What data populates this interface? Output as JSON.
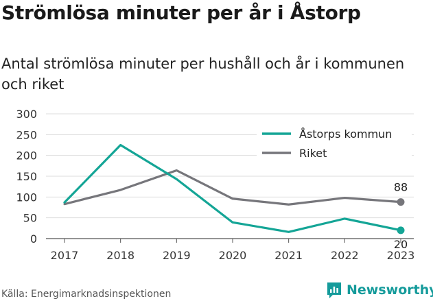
{
  "title": "Strömlösa minuter per år i Åstorp",
  "subtitle": "Antal strömlösa minuter per hushåll och år i kommunen och riket",
  "source": "Källa: Energimarknadsinspektionen",
  "brand": {
    "name": "Newsworthy",
    "icon": "newsworthy-logo-icon",
    "color": "#159b9b"
  },
  "chart_data": {
    "type": "line",
    "x": [
      "2017",
      "2018",
      "2019",
      "2020",
      "2021",
      "2022",
      "2023"
    ],
    "ylim": [
      0,
      300
    ],
    "yticks": [
      "0",
      "50",
      "100",
      "150",
      "200",
      "250",
      "300"
    ],
    "grid": true,
    "legend": "top-right",
    "series": [
      {
        "name": "Åstorps kommun",
        "color": "#14a596",
        "values": [
          87,
          225,
          143,
          39,
          16,
          48,
          20
        ],
        "end_label": "20"
      },
      {
        "name": "Riket",
        "color": "#76767b",
        "values": [
          83,
          117,
          164,
          96,
          82,
          98,
          88
        ],
        "end_label": "88"
      }
    ]
  }
}
